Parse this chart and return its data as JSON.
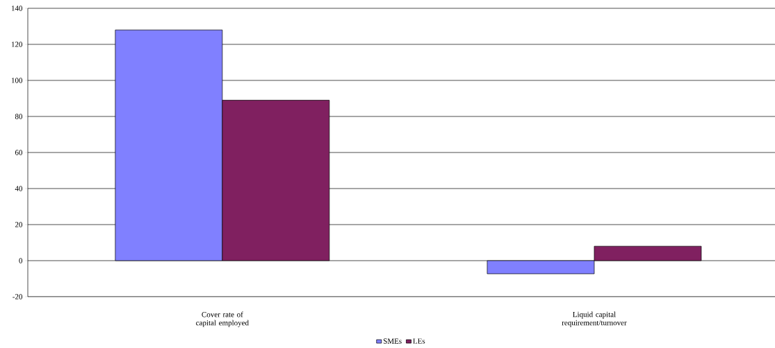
{
  "chart_data": {
    "type": "bar",
    "categories": [
      "Cover rate of capital employed",
      "Liquid capital requirement/turnover"
    ],
    "series": [
      {
        "name": "SMEs",
        "color": "#8080ff",
        "values": [
          128,
          -7.3
        ]
      },
      {
        "name": "LEs",
        "color": "#802060",
        "values": [
          89,
          8
        ]
      }
    ],
    "ylim": [
      -20,
      140
    ],
    "yticks": [
      -20,
      0,
      20,
      40,
      60,
      80,
      100,
      120,
      140
    ],
    "grid": "y",
    "legend": "bottom"
  }
}
